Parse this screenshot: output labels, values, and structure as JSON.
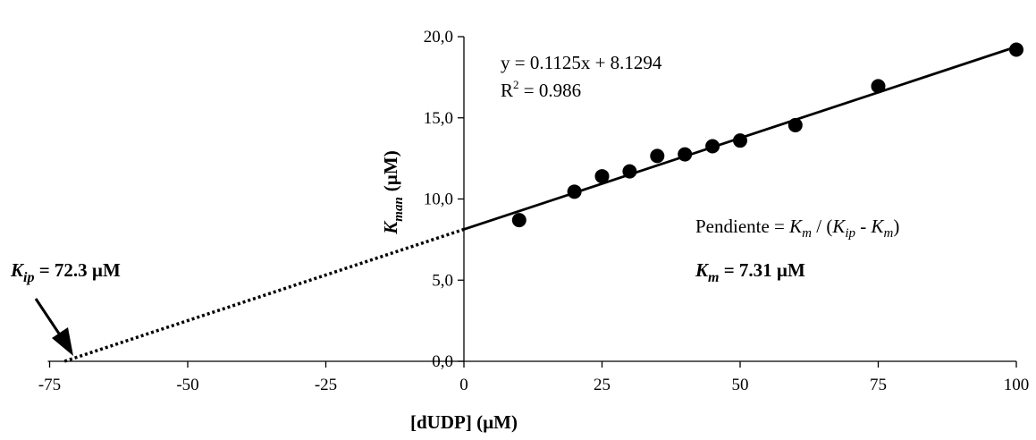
{
  "chart_data": {
    "type": "scatter",
    "xlabel": "[dUDP] (µM)",
    "ylabel_main": "K",
    "ylabel_sub": "man",
    "ylabel_unit": "(µM)",
    "xlim": [
      -75,
      100
    ],
    "ylim": [
      0,
      20
    ],
    "x_ticks": [
      -75,
      -50,
      -25,
      0,
      25,
      50,
      75,
      100
    ],
    "x_tick_labels": [
      "-75",
      "-50",
      "-25",
      "0",
      "25",
      "50",
      "75",
      "100"
    ],
    "y_ticks": [
      0,
      5,
      10,
      15,
      20
    ],
    "y_tick_labels": [
      "0,0",
      "5,0",
      "10,0",
      "15,0",
      "20,0"
    ],
    "grid": false,
    "points": [
      {
        "x": 10,
        "y": 8.7
      },
      {
        "x": 20,
        "y": 10.45
      },
      {
        "x": 25,
        "y": 11.4
      },
      {
        "x": 30,
        "y": 11.7
      },
      {
        "x": 35,
        "y": 12.65
      },
      {
        "x": 40,
        "y": 12.75
      },
      {
        "x": 45,
        "y": 13.25
      },
      {
        "x": 50,
        "y": 13.6
      },
      {
        "x": 60,
        "y": 14.55
      },
      {
        "x": 75,
        "y": 16.95
      },
      {
        "x": 100,
        "y": 19.2
      }
    ],
    "fit_line": {
      "x": [
        0,
        100
      ],
      "y": [
        8.1294,
        19.3794
      ]
    },
    "extrapolation": {
      "x": [
        -72.3,
        0
      ],
      "y": [
        0,
        8.1294
      ],
      "style": "dotted"
    },
    "annotations": {
      "equation": "y = 0.1125x + 8.1294",
      "r2_prefix": "R",
      "r2_sup": "2",
      "r2_suffix": " = 0.986",
      "slope_text_a": "Pendiente = ",
      "slope_km1": "K",
      "slope_km1_sub": "m",
      "slope_mid": " / (",
      "slope_kip": "K",
      "slope_kip_sub": "ip",
      "slope_minus": " - ",
      "slope_km2": "K",
      "slope_km2_sub": "m",
      "slope_end": ")",
      "km_K": "K",
      "km_sub": "m",
      "km_value": " = 7.31 µM",
      "kip_K": "K",
      "kip_sub": "ip",
      "kip_value": " = 72.3 µM"
    }
  }
}
